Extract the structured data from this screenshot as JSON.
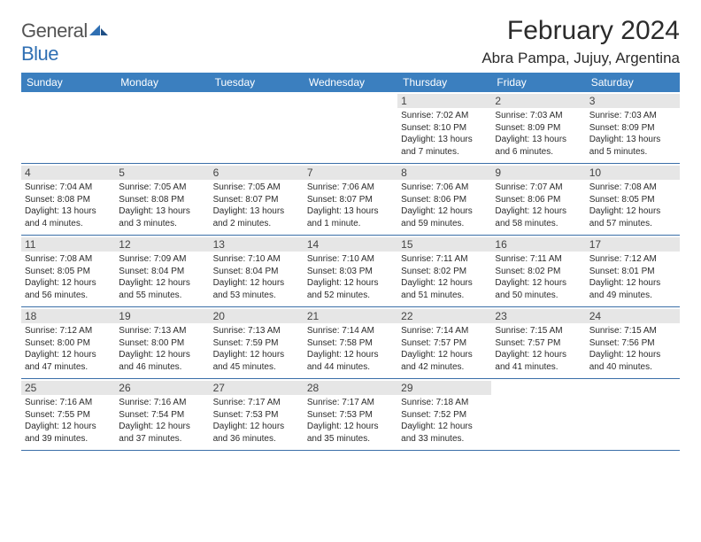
{
  "brand": {
    "part1": "General",
    "part2": "Blue"
  },
  "title": "February 2024",
  "location": "Abra Pampa, Jujuy, Argentina",
  "colors": {
    "header_bg": "#3b7fbf",
    "header_text": "#ffffff",
    "rule": "#3b6fa8",
    "daynum_bg": "#e6e6e6",
    "brand_gray": "#545454",
    "brand_blue": "#2f6fb3"
  },
  "daynames": [
    "Sunday",
    "Monday",
    "Tuesday",
    "Wednesday",
    "Thursday",
    "Friday",
    "Saturday"
  ],
  "weeks": [
    [
      {
        "empty": true
      },
      {
        "empty": true
      },
      {
        "empty": true
      },
      {
        "empty": true
      },
      {
        "day": "1",
        "sunrise": "Sunrise: 7:02 AM",
        "sunset": "Sunset: 8:10 PM",
        "dl1": "Daylight: 13 hours",
        "dl2": "and 7 minutes."
      },
      {
        "day": "2",
        "sunrise": "Sunrise: 7:03 AM",
        "sunset": "Sunset: 8:09 PM",
        "dl1": "Daylight: 13 hours",
        "dl2": "and 6 minutes."
      },
      {
        "day": "3",
        "sunrise": "Sunrise: 7:03 AM",
        "sunset": "Sunset: 8:09 PM",
        "dl1": "Daylight: 13 hours",
        "dl2": "and 5 minutes."
      }
    ],
    [
      {
        "day": "4",
        "sunrise": "Sunrise: 7:04 AM",
        "sunset": "Sunset: 8:08 PM",
        "dl1": "Daylight: 13 hours",
        "dl2": "and 4 minutes."
      },
      {
        "day": "5",
        "sunrise": "Sunrise: 7:05 AM",
        "sunset": "Sunset: 8:08 PM",
        "dl1": "Daylight: 13 hours",
        "dl2": "and 3 minutes."
      },
      {
        "day": "6",
        "sunrise": "Sunrise: 7:05 AM",
        "sunset": "Sunset: 8:07 PM",
        "dl1": "Daylight: 13 hours",
        "dl2": "and 2 minutes."
      },
      {
        "day": "7",
        "sunrise": "Sunrise: 7:06 AM",
        "sunset": "Sunset: 8:07 PM",
        "dl1": "Daylight: 13 hours",
        "dl2": "and 1 minute."
      },
      {
        "day": "8",
        "sunrise": "Sunrise: 7:06 AM",
        "sunset": "Sunset: 8:06 PM",
        "dl1": "Daylight: 12 hours",
        "dl2": "and 59 minutes."
      },
      {
        "day": "9",
        "sunrise": "Sunrise: 7:07 AM",
        "sunset": "Sunset: 8:06 PM",
        "dl1": "Daylight: 12 hours",
        "dl2": "and 58 minutes."
      },
      {
        "day": "10",
        "sunrise": "Sunrise: 7:08 AM",
        "sunset": "Sunset: 8:05 PM",
        "dl1": "Daylight: 12 hours",
        "dl2": "and 57 minutes."
      }
    ],
    [
      {
        "day": "11",
        "sunrise": "Sunrise: 7:08 AM",
        "sunset": "Sunset: 8:05 PM",
        "dl1": "Daylight: 12 hours",
        "dl2": "and 56 minutes."
      },
      {
        "day": "12",
        "sunrise": "Sunrise: 7:09 AM",
        "sunset": "Sunset: 8:04 PM",
        "dl1": "Daylight: 12 hours",
        "dl2": "and 55 minutes."
      },
      {
        "day": "13",
        "sunrise": "Sunrise: 7:10 AM",
        "sunset": "Sunset: 8:04 PM",
        "dl1": "Daylight: 12 hours",
        "dl2": "and 53 minutes."
      },
      {
        "day": "14",
        "sunrise": "Sunrise: 7:10 AM",
        "sunset": "Sunset: 8:03 PM",
        "dl1": "Daylight: 12 hours",
        "dl2": "and 52 minutes."
      },
      {
        "day": "15",
        "sunrise": "Sunrise: 7:11 AM",
        "sunset": "Sunset: 8:02 PM",
        "dl1": "Daylight: 12 hours",
        "dl2": "and 51 minutes."
      },
      {
        "day": "16",
        "sunrise": "Sunrise: 7:11 AM",
        "sunset": "Sunset: 8:02 PM",
        "dl1": "Daylight: 12 hours",
        "dl2": "and 50 minutes."
      },
      {
        "day": "17",
        "sunrise": "Sunrise: 7:12 AM",
        "sunset": "Sunset: 8:01 PM",
        "dl1": "Daylight: 12 hours",
        "dl2": "and 49 minutes."
      }
    ],
    [
      {
        "day": "18",
        "sunrise": "Sunrise: 7:12 AM",
        "sunset": "Sunset: 8:00 PM",
        "dl1": "Daylight: 12 hours",
        "dl2": "and 47 minutes."
      },
      {
        "day": "19",
        "sunrise": "Sunrise: 7:13 AM",
        "sunset": "Sunset: 8:00 PM",
        "dl1": "Daylight: 12 hours",
        "dl2": "and 46 minutes."
      },
      {
        "day": "20",
        "sunrise": "Sunrise: 7:13 AM",
        "sunset": "Sunset: 7:59 PM",
        "dl1": "Daylight: 12 hours",
        "dl2": "and 45 minutes."
      },
      {
        "day": "21",
        "sunrise": "Sunrise: 7:14 AM",
        "sunset": "Sunset: 7:58 PM",
        "dl1": "Daylight: 12 hours",
        "dl2": "and 44 minutes."
      },
      {
        "day": "22",
        "sunrise": "Sunrise: 7:14 AM",
        "sunset": "Sunset: 7:57 PM",
        "dl1": "Daylight: 12 hours",
        "dl2": "and 42 minutes."
      },
      {
        "day": "23",
        "sunrise": "Sunrise: 7:15 AM",
        "sunset": "Sunset: 7:57 PM",
        "dl1": "Daylight: 12 hours",
        "dl2": "and 41 minutes."
      },
      {
        "day": "24",
        "sunrise": "Sunrise: 7:15 AM",
        "sunset": "Sunset: 7:56 PM",
        "dl1": "Daylight: 12 hours",
        "dl2": "and 40 minutes."
      }
    ],
    [
      {
        "day": "25",
        "sunrise": "Sunrise: 7:16 AM",
        "sunset": "Sunset: 7:55 PM",
        "dl1": "Daylight: 12 hours",
        "dl2": "and 39 minutes."
      },
      {
        "day": "26",
        "sunrise": "Sunrise: 7:16 AM",
        "sunset": "Sunset: 7:54 PM",
        "dl1": "Daylight: 12 hours",
        "dl2": "and 37 minutes."
      },
      {
        "day": "27",
        "sunrise": "Sunrise: 7:17 AM",
        "sunset": "Sunset: 7:53 PM",
        "dl1": "Daylight: 12 hours",
        "dl2": "and 36 minutes."
      },
      {
        "day": "28",
        "sunrise": "Sunrise: 7:17 AM",
        "sunset": "Sunset: 7:53 PM",
        "dl1": "Daylight: 12 hours",
        "dl2": "and 35 minutes."
      },
      {
        "day": "29",
        "sunrise": "Sunrise: 7:18 AM",
        "sunset": "Sunset: 7:52 PM",
        "dl1": "Daylight: 12 hours",
        "dl2": "and 33 minutes."
      },
      {
        "empty": true
      },
      {
        "empty": true
      }
    ]
  ]
}
